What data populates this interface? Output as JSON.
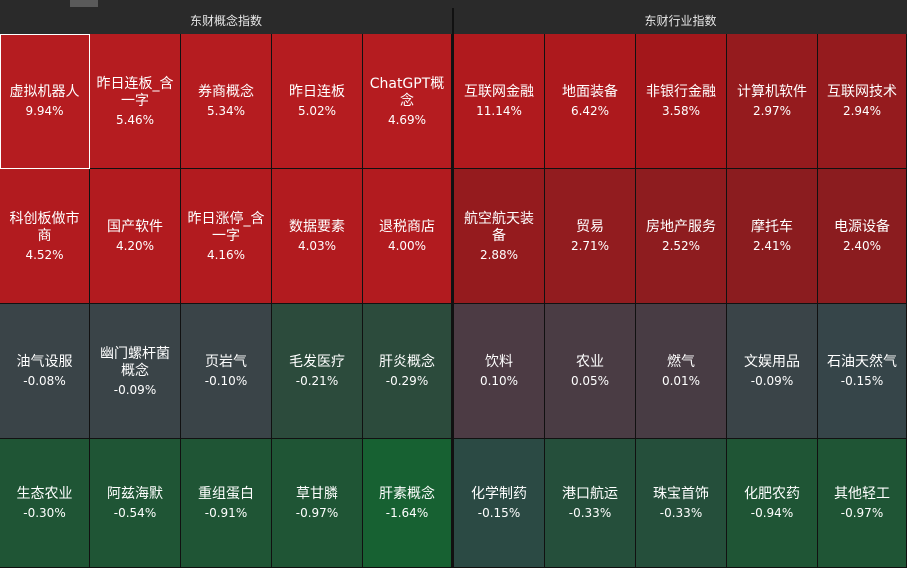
{
  "topbar": {
    "tabs": [
      "",
      "",
      "",
      "",
      "",
      "",
      "",
      "",
      ""
    ],
    "active_index": 1
  },
  "headers": {
    "concept": "东财概念指数",
    "industry": "东财行业指数"
  },
  "concept_grid": [
    [
      {
        "name": "虚拟机器人",
        "pct": "9.94%",
        "color": "#b51c20",
        "selected": true
      },
      {
        "name": "昨日连板_含一字",
        "pct": "5.46%",
        "color": "#b51c20"
      },
      {
        "name": "券商概念",
        "pct": "5.34%",
        "color": "#b51c20"
      },
      {
        "name": "昨日连板",
        "pct": "5.02%",
        "color": "#b51c20"
      },
      {
        "name": "ChatGPT概念",
        "pct": "4.69%",
        "color": "#b51c20"
      }
    ],
    [
      {
        "name": "科创板做市商",
        "pct": "4.52%",
        "color": "#b21b1f"
      },
      {
        "name": "国产软件",
        "pct": "4.20%",
        "color": "#b21b1f"
      },
      {
        "name": "昨日涨停_含一字",
        "pct": "4.16%",
        "color": "#b21b1f"
      },
      {
        "name": "数据要素",
        "pct": "4.03%",
        "color": "#b21b1f"
      },
      {
        "name": "退税商店",
        "pct": "4.00%",
        "color": "#b21b1f"
      }
    ],
    [
      {
        "name": "油气设服",
        "pct": "-0.08%",
        "color": "#3a4448"
      },
      {
        "name": "幽门螺杆菌概念",
        "pct": "-0.09%",
        "color": "#3a4448"
      },
      {
        "name": "页岩气",
        "pct": "-0.10%",
        "color": "#3a4448"
      },
      {
        "name": "毛发医疗",
        "pct": "-0.21%",
        "color": "#2c4b3c"
      },
      {
        "name": "肝炎概念",
        "pct": "-0.29%",
        "color": "#2c4b3c"
      }
    ],
    [
      {
        "name": "生态农业",
        "pct": "-0.30%",
        "color": "#1f5535"
      },
      {
        "name": "阿兹海默",
        "pct": "-0.54%",
        "color": "#1f5535"
      },
      {
        "name": "重组蛋白",
        "pct": "-0.91%",
        "color": "#1f5535"
      },
      {
        "name": "草甘膦",
        "pct": "-0.97%",
        "color": "#1f5535"
      },
      {
        "name": "肝素概念",
        "pct": "-1.64%",
        "color": "#176132"
      }
    ]
  ],
  "industry_grid": [
    [
      {
        "name": "互联网金融",
        "pct": "11.14%",
        "color": "#b01a1e"
      },
      {
        "name": "地面装备",
        "pct": "6.42%",
        "color": "#ad191d"
      },
      {
        "name": "非银行金融",
        "pct": "3.58%",
        "color": "#a3171b"
      },
      {
        "name": "计算机软件",
        "pct": "2.97%",
        "color": "#951b1e"
      },
      {
        "name": "互联网技术",
        "pct": "2.94%",
        "color": "#951b1e"
      }
    ],
    [
      {
        "name": "航空航天装备",
        "pct": "2.88%",
        "color": "#951b1e"
      },
      {
        "name": "贸易",
        "pct": "2.71%",
        "color": "#921c1f"
      },
      {
        "name": "房地产服务",
        "pct": "2.52%",
        "color": "#8e1c1f"
      },
      {
        "name": "摩托车",
        "pct": "2.41%",
        "color": "#8b1c1f"
      },
      {
        "name": "电源设备",
        "pct": "2.40%",
        "color": "#8b1c1f"
      }
    ],
    [
      {
        "name": "饮料",
        "pct": "0.10%",
        "color": "#4c3b44"
      },
      {
        "name": "农业",
        "pct": "0.05%",
        "color": "#4a3c44"
      },
      {
        "name": "燃气",
        "pct": "0.01%",
        "color": "#483c44"
      },
      {
        "name": "文娱用品",
        "pct": "-0.09%",
        "color": "#3a4448"
      },
      {
        "name": "石油天然气",
        "pct": "-0.15%",
        "color": "#364549"
      }
    ],
    [
      {
        "name": "化学制药",
        "pct": "-0.15%",
        "color": "#2b4a44"
      },
      {
        "name": "港口航运",
        "pct": "-0.33%",
        "color": "#254f3b"
      },
      {
        "name": "珠宝首饰",
        "pct": "-0.33%",
        "color": "#254f3b"
      },
      {
        "name": "化肥农药",
        "pct": "-0.94%",
        "color": "#1f5535"
      },
      {
        "name": "其他轻工",
        "pct": "-0.97%",
        "color": "#1f5535"
      }
    ]
  ]
}
